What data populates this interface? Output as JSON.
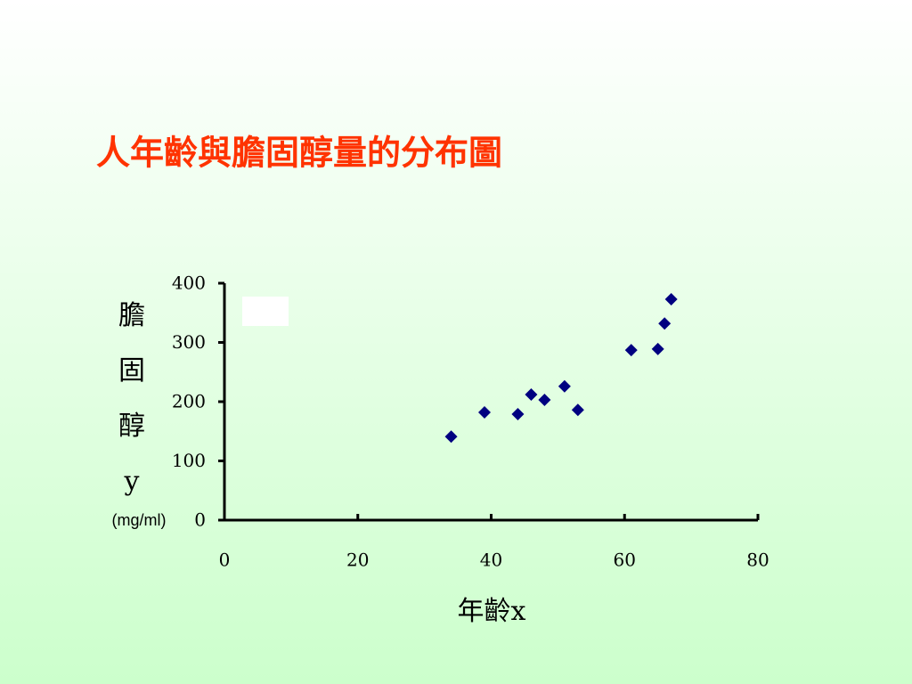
{
  "chart_data": {
    "type": "scatter",
    "title": "人年齡與膽固醇量的分布圖",
    "x_label": "年齡x",
    "y_label_lines": [
      "膽",
      "固",
      "醇",
      "y"
    ],
    "y_unit": "(mg/ml)",
    "x": [
      34,
      39,
      44,
      46,
      48,
      51,
      53,
      61,
      65,
      66,
      67
    ],
    "values": [
      141,
      182,
      179,
      212,
      203,
      226,
      186,
      287,
      289,
      332,
      373
    ],
    "color": "#000080",
    "xlim": [
      0,
      80
    ],
    "xticks": [
      0,
      20,
      40,
      60,
      80
    ],
    "ylim": [
      0,
      400
    ],
    "yticks": [
      0,
      100,
      200,
      300,
      400
    ],
    "grid": false
  }
}
